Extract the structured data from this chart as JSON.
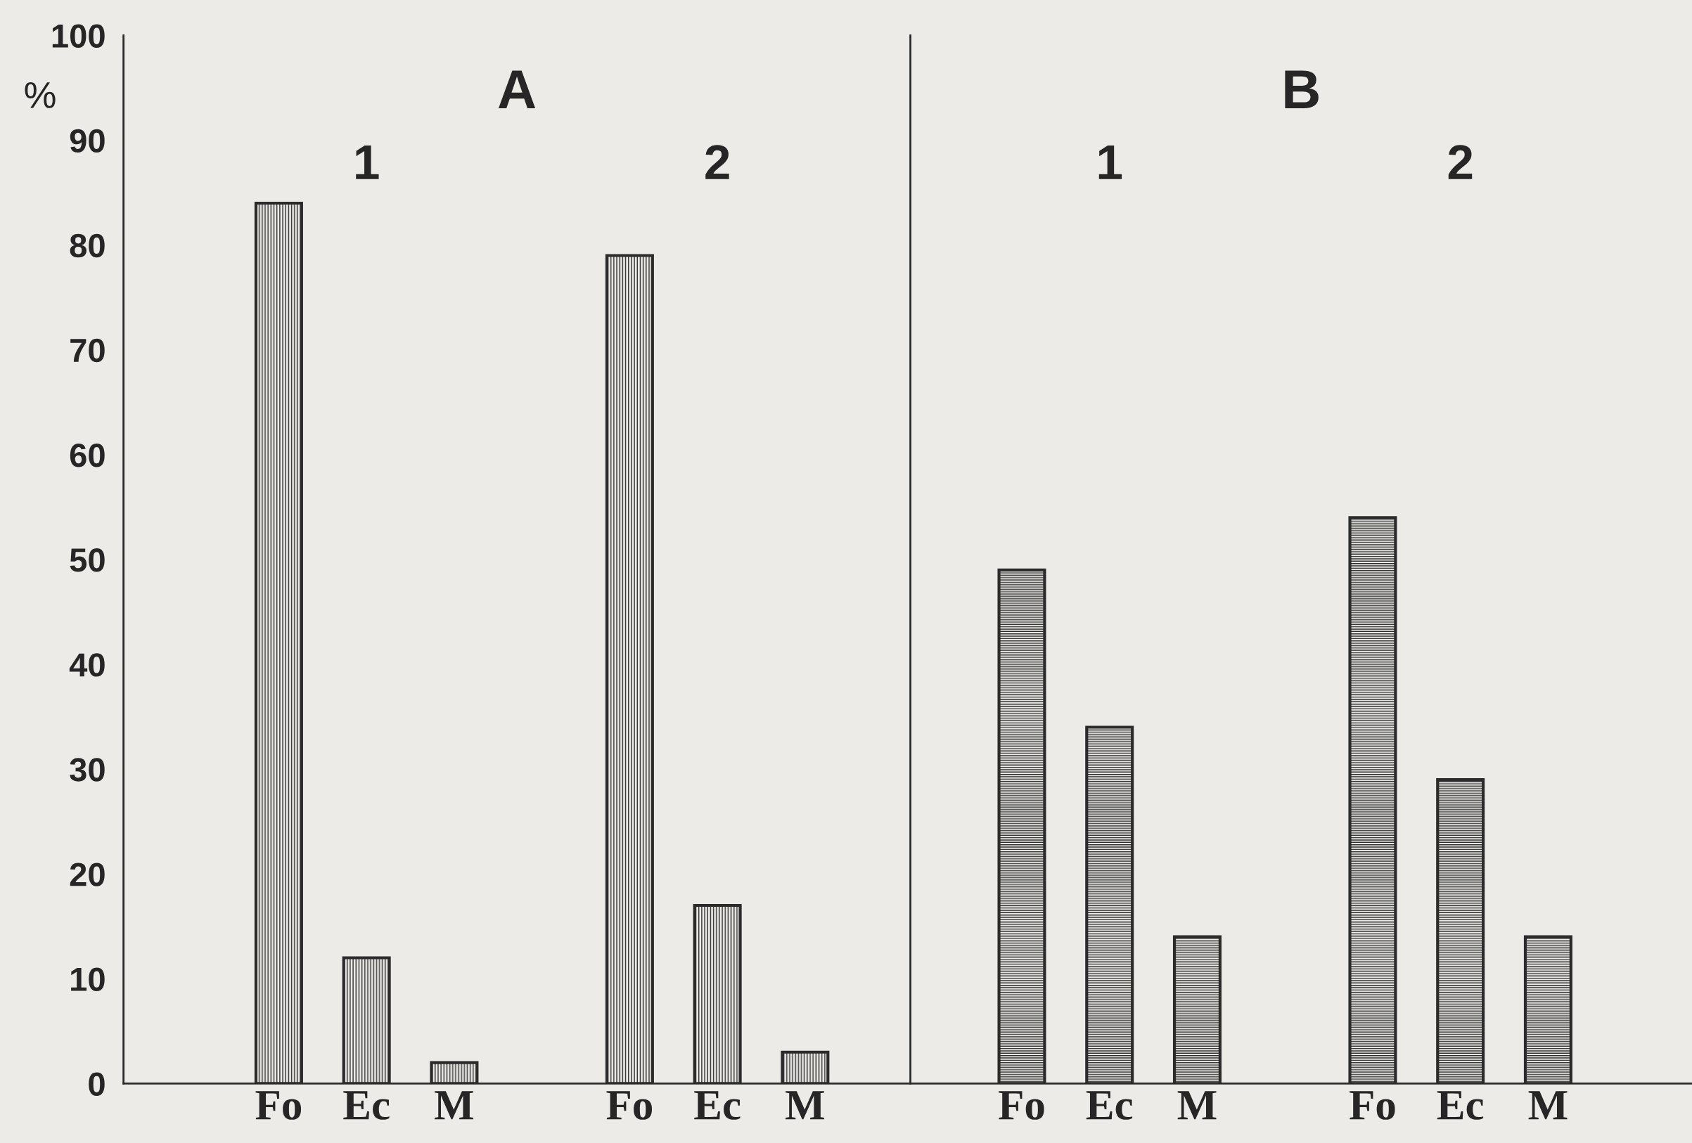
{
  "chart_data": [
    {
      "type": "bar",
      "title": "A",
      "ylabel": "%",
      "categories": [
        "Fo",
        "Ec",
        "M",
        null,
        "Fo",
        "Ec",
        "M"
      ],
      "series": [
        {
          "color": "#2b2b2b",
          "values": [
            84,
            12,
            2,
            null,
            79,
            17,
            3
          ]
        }
      ],
      "ylim": [
        0,
        100
      ],
      "yticks": [
        0,
        10,
        20,
        30,
        40,
        50,
        60,
        70,
        80,
        90,
        100
      ],
      "annotations": [
        "1",
        "2"
      ]
    },
    {
      "type": "bar",
      "title": "B",
      "categories": [
        "Fo",
        "Ec",
        "M",
        null,
        "Fo",
        "Ec",
        "M"
      ],
      "series": [
        {
          "color": "#2b2b2b",
          "values": [
            49,
            34,
            14,
            null,
            54,
            29,
            14
          ]
        }
      ],
      "ylim": [
        0,
        100
      ],
      "tick_labels": "x",
      "annotations": [
        "1",
        "2"
      ]
    }
  ]
}
